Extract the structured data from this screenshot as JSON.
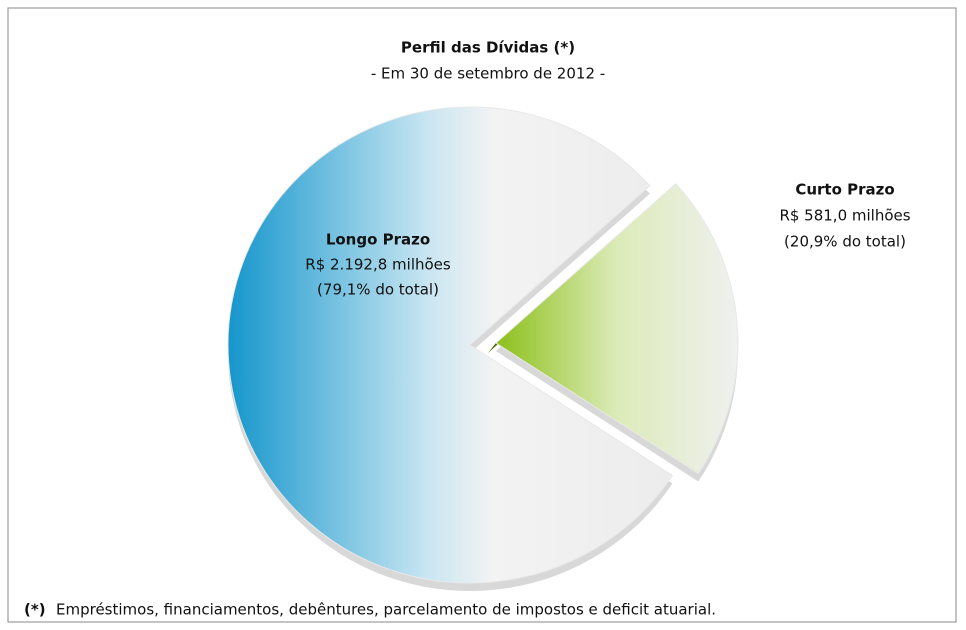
{
  "chart_data": {
    "type": "pie",
    "title": "Perfil das Dívidas (*)",
    "subtitle": "- Em 30 de setembro de 2012 -",
    "categories": [
      "Longo Prazo",
      "Curto Prazo"
    ],
    "values": [
      79.1,
      20.9
    ],
    "value_labels": [
      "(79,1% do total)",
      "(20,9% do total)"
    ],
    "amounts": [
      2192.8,
      581.0
    ],
    "amount_labels": [
      "R$ 2.192,8 milhões",
      "R$ 581,0 milhões"
    ],
    "colors": [
      "#1596cc",
      "#8cc01a"
    ],
    "footnote_marker": "(*)",
    "footnote": "Empréstimos, financiamentos, debêntures, parcelamento de impostos e deficit atuarial."
  }
}
